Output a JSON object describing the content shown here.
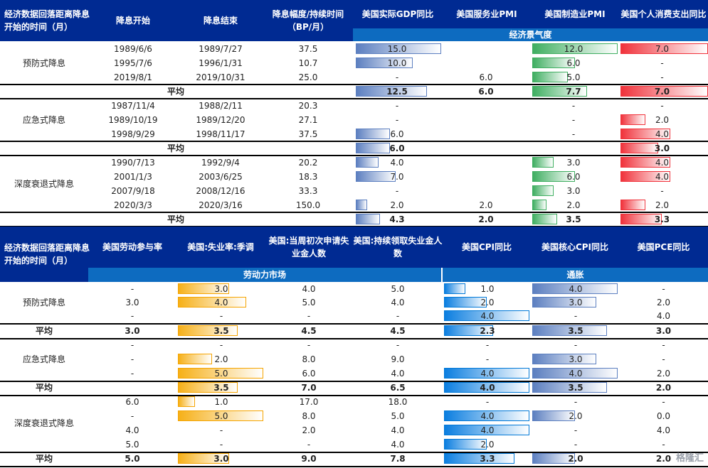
{
  "colors": {
    "header": "#002a92",
    "subheader": "#0d6bc0",
    "gdp_bar": "#5c7fc0",
    "pmi_bar": "#3fae61",
    "pce_bar": "#f0323b",
    "labor_bar": "#f5a400",
    "inflation_bar": "#0078d7"
  },
  "top": {
    "headers": [
      "经济数据回落距离降息开始的时间（月）",
      "降息开始",
      "降息结束",
      "降息幅度/持续时间（BP/月）",
      "美国实际GDP同比",
      "美国服务业PMI",
      "美国制造业PMI",
      "美国个人消费支出同比"
    ],
    "group_label": "经济景气度",
    "categories": [
      "预防式降息",
      "应急式降息",
      "深度衰退式降息"
    ],
    "avg_label": "平均",
    "rows": [
      [
        "1989/6/6",
        "1989/7/27",
        "37.5",
        "15.0",
        "",
        "12.0",
        "7.0"
      ],
      [
        "1995/7/6",
        "1996/1/31",
        "10.7",
        "10.0",
        "",
        "6.0",
        "-"
      ],
      [
        "2019/8/1",
        "2019/10/31",
        "25.0",
        "-",
        "6.0",
        "5.0",
        "-"
      ],
      [
        "1987/11/4",
        "1988/2/11",
        "20.3",
        "-",
        "",
        "-",
        "-"
      ],
      [
        "1989/10/19",
        "1989/12/20",
        "27.1",
        "-",
        "",
        "-",
        "2.0"
      ],
      [
        "1998/9/29",
        "1998/11/17",
        "37.5",
        "6.0",
        "",
        "-",
        "4.0"
      ],
      [
        "1990/7/13",
        "1992/9/4",
        "20.2",
        "4.0",
        "",
        "3.0",
        "4.0"
      ],
      [
        "2001/1/3",
        "2003/6/25",
        "18.3",
        "7.0",
        "",
        "6.0",
        "4.0"
      ],
      [
        "2007/9/18",
        "2008/12/16",
        "33.3",
        "-",
        "",
        "3.0",
        "-"
      ],
      [
        "2020/3/3",
        "2020/3/16",
        "150.0",
        "2.0",
        "2.0",
        "2.0",
        "2.0"
      ]
    ],
    "avgs": [
      [
        "12.5",
        "6.0",
        "7.7",
        "7.0"
      ],
      [
        "6.0",
        "",
        "",
        "3.0"
      ],
      [
        "4.3",
        "2.0",
        "3.5",
        "3.3"
      ]
    ]
  },
  "bottom": {
    "headers": [
      "经济数据回落距离降息开始的时间（月）",
      "美国劳动参与率",
      "美国:失业率:季调",
      "美国:当周初次申请失业金人数",
      "美国:持续领取失业金人数",
      "美国CPI同比",
      "美国核心CPI同比",
      "美国PCE同比"
    ],
    "group_labels": [
      "劳动力市场",
      "通胀"
    ],
    "categories": [
      "预防式降息",
      "应急式降息",
      "深度衰退式降息"
    ],
    "avg_label": "平均",
    "rows": [
      [
        "-",
        "3.0",
        "4.0",
        "5.0",
        "1.0",
        "4.0",
        "-"
      ],
      [
        "3.0",
        "4.0",
        "5.0",
        "4.0",
        "2.0",
        "3.0",
        "2.0"
      ],
      [
        "-",
        "-",
        "-",
        "-",
        "4.0",
        "-",
        "4.0"
      ],
      [
        "-",
        "-",
        "-",
        "-",
        "-",
        "-",
        "-"
      ],
      [
        "-",
        "2.0",
        "8.0",
        "9.0",
        "-",
        "3.0",
        "-"
      ],
      [
        "-",
        "5.0",
        "6.0",
        "4.0",
        "4.0",
        "4.0",
        "2.0"
      ],
      [
        "6.0",
        "1.0",
        "17.0",
        "18.0",
        "-",
        "-",
        "-"
      ],
      [
        "-",
        "5.0",
        "8.0",
        "5.0",
        "4.0",
        "2.0",
        "0.0"
      ],
      [
        "4.0",
        "-",
        "2.0",
        "4.0",
        "4.0",
        "-",
        "4.0"
      ],
      [
        "5.0",
        "-",
        "-",
        "4.0",
        "2.0",
        "-",
        "-"
      ]
    ],
    "avgs": [
      [
        "3.0",
        "3.5",
        "4.5",
        "4.5",
        "2.3",
        "3.5",
        "3.0"
      ],
      [
        "",
        "3.5",
        "7.0",
        "6.5",
        "4.0",
        "3.5",
        "2.0"
      ],
      [
        "5.0",
        "3.0",
        "9.0",
        "7.8",
        "3.3",
        "2.0",
        "2.0"
      ]
    ]
  },
  "watermark": "格隆汇"
}
